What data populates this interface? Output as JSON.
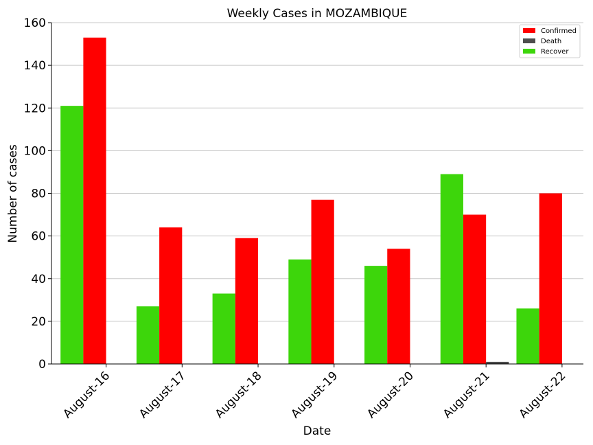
{
  "chart_data": {
    "type": "bar",
    "title": "Weekly Cases in MOZAMBIQUE",
    "xlabel": "Date",
    "ylabel": "Number of cases",
    "ylim": [
      0,
      160
    ],
    "yticks": [
      0,
      20,
      40,
      60,
      80,
      100,
      120,
      140,
      160
    ],
    "grid": "horizontal",
    "legend_position": "top-right",
    "categories": [
      "August-16",
      "August-17",
      "August-18",
      "August-19",
      "August-20",
      "August-21",
      "August-22"
    ],
    "series": [
      {
        "name": "Recover",
        "color": "#3dd60b",
        "values": [
          121,
          27,
          33,
          49,
          46,
          89,
          26
        ]
      },
      {
        "name": "Confirmed",
        "color": "#ff0000",
        "values": [
          153,
          64,
          59,
          77,
          54,
          70,
          80
        ]
      },
      {
        "name": "Death",
        "color": "#4d4d4d",
        "values": [
          0,
          0,
          0,
          0,
          0,
          1,
          0
        ]
      }
    ],
    "legend_order": [
      "Confirmed",
      "Death",
      "Recover"
    ]
  }
}
